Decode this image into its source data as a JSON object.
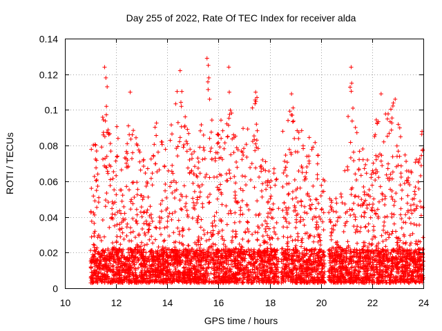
{
  "chart_data": {
    "type": "scatter",
    "title": "Day 255 of 2022, Rate Of TEC Index for receiver alda",
    "xlabel": "GPS time / hours",
    "ylabel": "ROTI / TECUs",
    "xlim": [
      10,
      24
    ],
    "ylim": [
      0,
      0.14
    ],
    "xticks": [
      "10",
      "12",
      "14",
      "16",
      "18",
      "20",
      "22",
      "24"
    ],
    "yticks": [
      "0",
      "0.02",
      "0.04",
      "0.06",
      "0.08",
      "0.1",
      "0.12",
      "0.14"
    ],
    "grid": true,
    "legend": "none",
    "marker": "plus",
    "color": "#ff0000",
    "observation_segments": [
      [
        11.0,
        18.35
      ],
      [
        18.45,
        20.15
      ],
      [
        20.3,
        24.0
      ]
    ],
    "baseline_band": [
      0.003,
      0.022
    ],
    "upper_envelope": [
      {
        "x": 11.05,
        "y": 0.088
      },
      {
        "x": 11.1,
        "y": 0.082
      },
      {
        "x": 11.3,
        "y": 0.08
      },
      {
        "x": 11.55,
        "y": 0.124
      },
      {
        "x": 11.6,
        "y": 0.114
      },
      {
        "x": 11.65,
        "y": 0.102
      },
      {
        "x": 11.85,
        "y": 0.072
      },
      {
        "x": 12.0,
        "y": 0.094
      },
      {
        "x": 12.3,
        "y": 0.076
      },
      {
        "x": 12.55,
        "y": 0.11
      },
      {
        "x": 12.6,
        "y": 0.102
      },
      {
        "x": 12.65,
        "y": 0.094
      },
      {
        "x": 13.0,
        "y": 0.072
      },
      {
        "x": 13.4,
        "y": 0.074
      },
      {
        "x": 13.5,
        "y": 0.096
      },
      {
        "x": 13.9,
        "y": 0.092
      },
      {
        "x": 14.05,
        "y": 0.082
      },
      {
        "x": 14.45,
        "y": 0.122
      },
      {
        "x": 14.7,
        "y": 0.1
      },
      {
        "x": 14.9,
        "y": 0.087
      },
      {
        "x": 15.2,
        "y": 0.075
      },
      {
        "x": 15.55,
        "y": 0.129
      },
      {
        "x": 15.6,
        "y": 0.116
      },
      {
        "x": 15.65,
        "y": 0.106
      },
      {
        "x": 16.0,
        "y": 0.086
      },
      {
        "x": 16.35,
        "y": 0.124
      },
      {
        "x": 16.4,
        "y": 0.11
      },
      {
        "x": 16.8,
        "y": 0.08
      },
      {
        "x": 17.1,
        "y": 0.1
      },
      {
        "x": 17.45,
        "y": 0.108
      },
      {
        "x": 17.5,
        "y": 0.092
      },
      {
        "x": 18.05,
        "y": 0.062
      },
      {
        "x": 18.6,
        "y": 0.1
      },
      {
        "x": 18.7,
        "y": 0.094
      },
      {
        "x": 18.85,
        "y": 0.108
      },
      {
        "x": 19.3,
        "y": 0.086
      },
      {
        "x": 19.6,
        "y": 0.088
      },
      {
        "x": 19.9,
        "y": 0.08
      },
      {
        "x": 20.0,
        "y": 0.07
      },
      {
        "x": 20.5,
        "y": 0.048
      },
      {
        "x": 20.9,
        "y": 0.06
      },
      {
        "x": 21.15,
        "y": 0.124
      },
      {
        "x": 21.2,
        "y": 0.114
      },
      {
        "x": 21.25,
        "y": 0.1
      },
      {
        "x": 21.6,
        "y": 0.08
      },
      {
        "x": 22.0,
        "y": 0.086
      },
      {
        "x": 22.3,
        "y": 0.109
      },
      {
        "x": 22.4,
        "y": 0.098
      },
      {
        "x": 22.9,
        "y": 0.106
      },
      {
        "x": 23.0,
        "y": 0.098
      },
      {
        "x": 23.2,
        "y": 0.08
      },
      {
        "x": 23.5,
        "y": 0.068
      },
      {
        "x": 23.8,
        "y": 0.082
      },
      {
        "x": 23.95,
        "y": 0.088
      }
    ],
    "isolated_peaks": [
      {
        "x": 11.55,
        "y": 0.124
      },
      {
        "x": 11.6,
        "y": 0.118
      },
      {
        "x": 11.65,
        "y": 0.113
      },
      {
        "x": 11.62,
        "y": 0.102
      },
      {
        "x": 12.55,
        "y": 0.11
      },
      {
        "x": 14.5,
        "y": 0.122
      },
      {
        "x": 14.55,
        "y": 0.102
      },
      {
        "x": 15.55,
        "y": 0.129
      },
      {
        "x": 15.6,
        "y": 0.125
      },
      {
        "x": 15.62,
        "y": 0.118
      },
      {
        "x": 15.65,
        "y": 0.106
      },
      {
        "x": 16.4,
        "y": 0.124
      },
      {
        "x": 16.42,
        "y": 0.11
      },
      {
        "x": 17.45,
        "y": 0.11
      },
      {
        "x": 17.5,
        "y": 0.107
      },
      {
        "x": 17.48,
        "y": 0.092
      },
      {
        "x": 18.85,
        "y": 0.109
      },
      {
        "x": 21.18,
        "y": 0.124
      },
      {
        "x": 21.2,
        "y": 0.115
      },
      {
        "x": 21.25,
        "y": 0.101
      },
      {
        "x": 22.35,
        "y": 0.109
      },
      {
        "x": 22.9,
        "y": 0.106
      },
      {
        "x": 23.95,
        "y": 0.088
      }
    ]
  }
}
